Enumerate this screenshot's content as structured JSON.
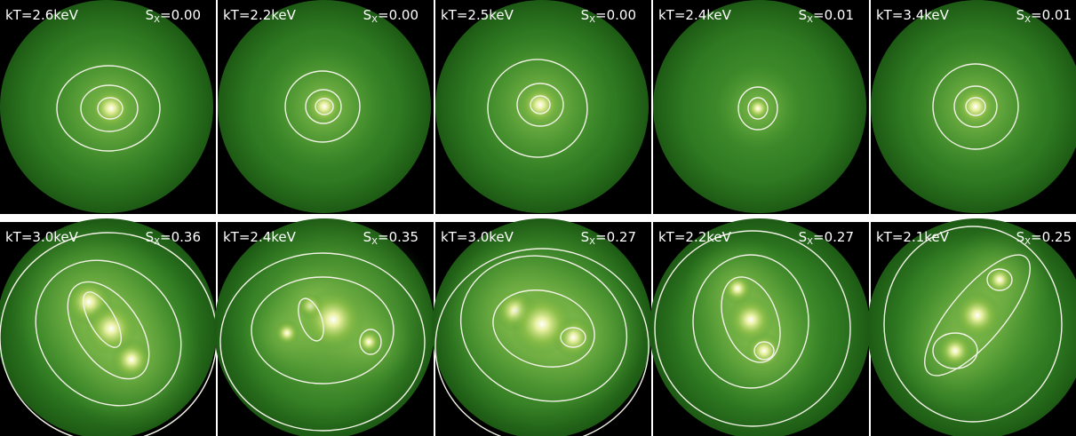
{
  "panels": [
    {
      "kt": "kT=2.6keV",
      "sx": {
        "symbol": "S",
        "subscript": "X",
        "value": "=0.00"
      }
    },
    {
      "kt": "kT=2.2keV",
      "sx": {
        "symbol": "S",
        "subscript": "X",
        "value": "=0.00"
      }
    },
    {
      "kt": "kT=2.5keV",
      "sx": {
        "symbol": "S",
        "subscript": "X",
        "value": "=0.00"
      }
    },
    {
      "kt": "kT=2.4keV",
      "sx": {
        "symbol": "S",
        "subscript": "X",
        "value": "=0.01"
      }
    },
    {
      "kt": "kT=3.4keV",
      "sx": {
        "symbol": "S",
        "subscript": "X",
        "value": "=0.01"
      }
    },
    {
      "kt": "kT=3.0keV",
      "sx": {
        "symbol": "S",
        "subscript": "X",
        "value": "=0.36"
      }
    },
    {
      "kt": "kT=2.4keV",
      "sx": {
        "symbol": "S",
        "subscript": "X",
        "value": "=0.35"
      }
    },
    {
      "kt": "kT=3.0keV",
      "sx": {
        "symbol": "S",
        "subscript": "X",
        "value": "=0.27"
      }
    },
    {
      "kt": "kT=2.2keV",
      "sx": {
        "symbol": "S",
        "subscript": "X",
        "value": "=0.27"
      }
    },
    {
      "kt": "kT=2.1keV",
      "sx": {
        "symbol": "S",
        "subscript": "X",
        "value": "=0.25"
      }
    }
  ]
}
